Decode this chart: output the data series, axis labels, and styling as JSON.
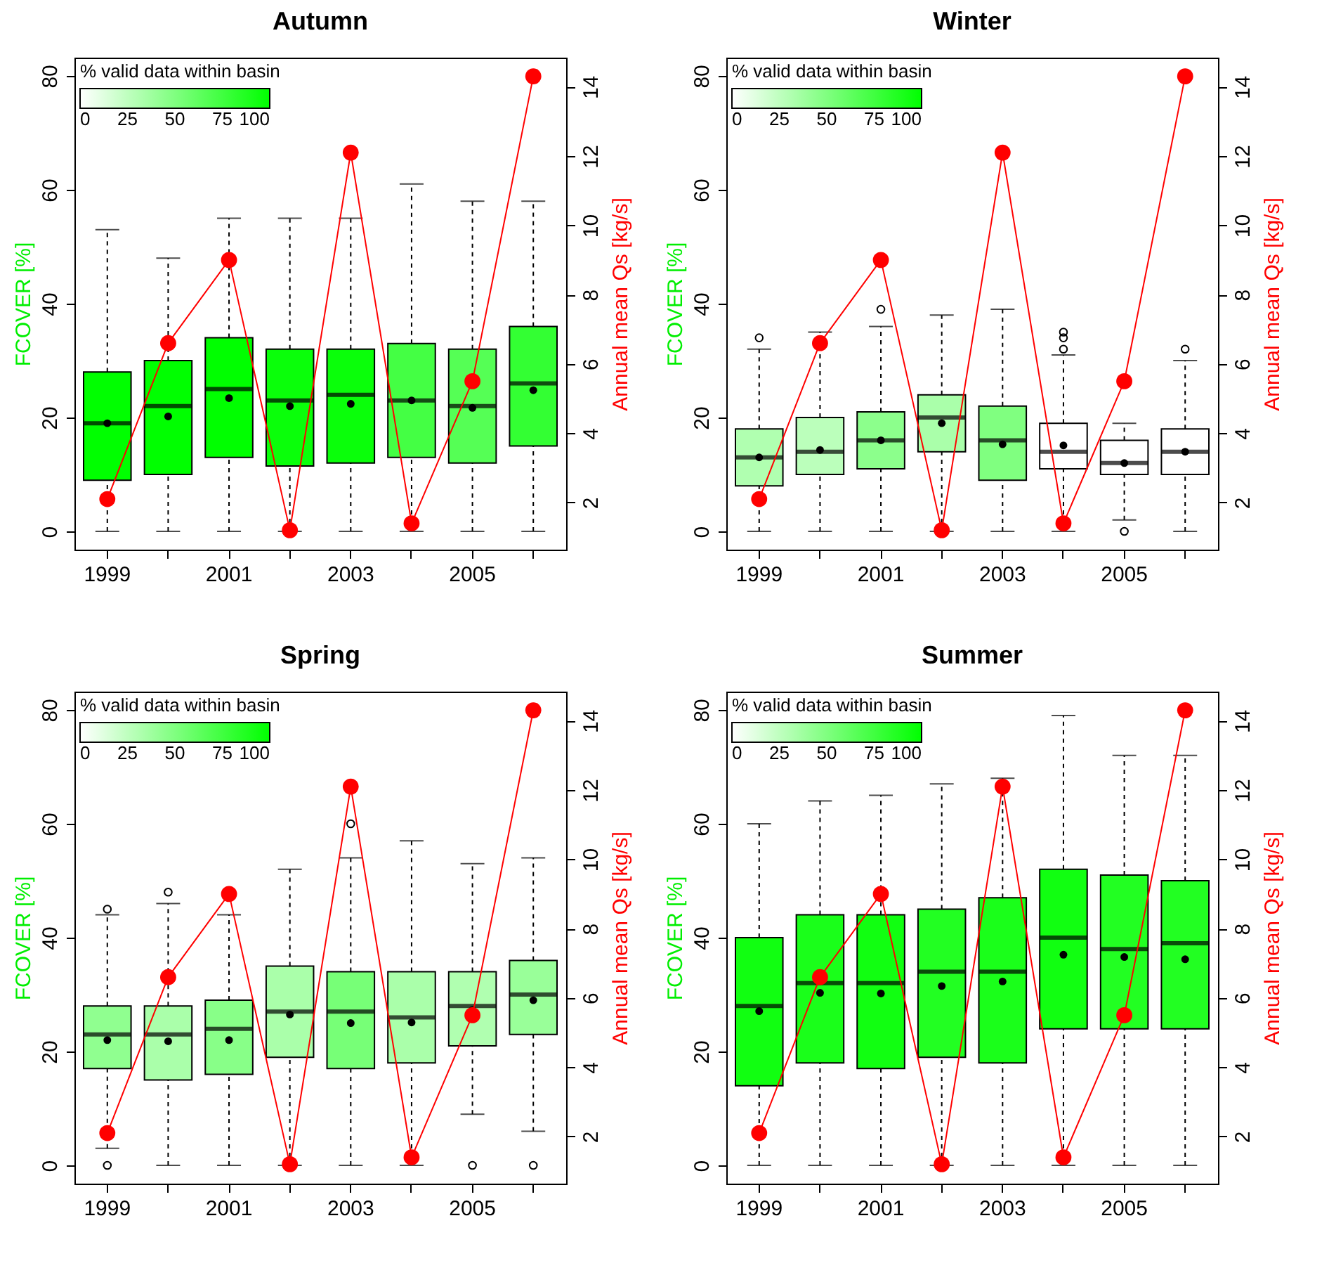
{
  "chart_data": [
    {
      "type": "box",
      "title": "Autumn",
      "categories": [
        "1999",
        null,
        "2001",
        null,
        "2003",
        null,
        "2005",
        null
      ],
      "ylabel": "FCOVER [%]",
      "y2label": "Annual mean Qs [kg/s]",
      "ylim": [
        -3.2,
        83.2
      ],
      "yticks": [
        0,
        20,
        40,
        60,
        80
      ],
      "y2lim": [
        0.64,
        14.84
      ],
      "y2ticks": [
        2,
        4,
        6,
        8,
        10,
        12,
        14
      ],
      "clabel": "% valid data within basin",
      "clim": [
        0,
        100
      ],
      "cticks": [
        0,
        25,
        50,
        75,
        100
      ],
      "marker": "circle",
      "series": [
        {
          "type": "box",
          "colors": [
            "#00ff00",
            "#00ff00",
            "#00ff00",
            "#0aff0a",
            "#0aff0a",
            "#44ff44",
            "#55ff55",
            "#33ff33"
          ],
          "boxes": [
            {
              "low": 0,
              "q1": 9,
              "median": 19,
              "q3": 28,
              "high": 53,
              "mean": 19
            },
            {
              "low": 0,
              "q1": 10,
              "median": 22,
              "q3": 30,
              "high": 48,
              "mean": 20.2
            },
            {
              "low": 0,
              "q1": 13,
              "median": 25,
              "q3": 34,
              "high": 55,
              "mean": 23.4
            },
            {
              "low": 0,
              "q1": 11.5,
              "median": 23,
              "q3": 32,
              "high": 55,
              "mean": 22
            },
            {
              "low": 0,
              "q1": 12,
              "median": 24,
              "q3": 32,
              "high": 55,
              "mean": 22.4
            },
            {
              "low": 0,
              "q1": 13,
              "median": 23,
              "q3": 33,
              "high": 61,
              "mean": 23
            },
            {
              "low": 0,
              "q1": 12,
              "median": 22,
              "q3": 32,
              "high": 58,
              "mean": 21.7
            },
            {
              "low": 0,
              "q1": 15,
              "median": 26,
              "q3": 36,
              "high": 58,
              "mean": 24.8
            }
          ]
        },
        {
          "type": "line",
          "axis": "y2",
          "color": "#ff0000",
          "values": [
            2.1,
            6.6,
            9.0,
            1.2,
            12.1,
            1.4,
            5.5,
            14.3
          ]
        }
      ]
    },
    {
      "type": "box",
      "title": "Winter",
      "categories": [
        "1999",
        null,
        "2001",
        null,
        "2003",
        null,
        "2005",
        null
      ],
      "ylabel": "FCOVER [%]",
      "y2label": "Annual mean Qs [kg/s]",
      "ylim": [
        -3.2,
        83.2
      ],
      "yticks": [
        0,
        20,
        40,
        60,
        80
      ],
      "y2lim": [
        0.64,
        14.84
      ],
      "y2ticks": [
        2,
        4,
        6,
        8,
        10,
        12,
        14
      ],
      "clabel": "% valid data within basin",
      "clim": [
        0,
        100
      ],
      "cticks": [
        0,
        25,
        50,
        75,
        100
      ],
      "marker": "circle",
      "series": [
        {
          "type": "box",
          "colors": [
            "#b0ffb0",
            "#bbffbb",
            "#8cff8c",
            "#aaffaa",
            "#80ff80",
            "#ffffff",
            "#ffffff",
            "#ffffff"
          ],
          "boxes": [
            {
              "low": 0,
              "q1": 8,
              "median": 13,
              "q3": 18,
              "high": 32,
              "mean": 13,
              "outliers": [
                34
              ]
            },
            {
              "low": 0,
              "q1": 10,
              "median": 14,
              "q3": 20,
              "high": 35,
              "mean": 14.3
            },
            {
              "low": 0,
              "q1": 11,
              "median": 16,
              "q3": 21,
              "high": 36,
              "mean": 16,
              "outliers": [
                39
              ]
            },
            {
              "low": 0,
              "q1": 14,
              "median": 20,
              "q3": 24,
              "high": 38,
              "mean": 19
            },
            {
              "low": 0,
              "q1": 9,
              "median": 16,
              "q3": 22,
              "high": 39,
              "mean": 15.3
            },
            {
              "low": 0,
              "q1": 11,
              "median": 14,
              "q3": 19,
              "high": 31,
              "mean": 15.1,
              "outliers": [
                32,
                34,
                35
              ]
            },
            {
              "low": 2,
              "q1": 10,
              "median": 12,
              "q3": 16,
              "high": 19,
              "mean": 12,
              "outliers": [
                0
              ]
            },
            {
              "low": 0,
              "q1": 10,
              "median": 14,
              "q3": 18,
              "high": 30,
              "mean": 14,
              "outliers": [
                32
              ]
            }
          ]
        },
        {
          "type": "line",
          "axis": "y2",
          "color": "#ff0000",
          "values": [
            2.1,
            6.6,
            9.0,
            1.2,
            12.1,
            1.4,
            5.5,
            14.3
          ]
        }
      ]
    },
    {
      "type": "box",
      "title": "Spring",
      "categories": [
        "1999",
        null,
        "2001",
        null,
        "2003",
        null,
        "2005",
        null
      ],
      "ylabel": "FCOVER [%]",
      "y2label": "Annual mean Qs [kg/s]",
      "ylim": [
        -3.2,
        83.2
      ],
      "yticks": [
        0,
        20,
        40,
        60,
        80
      ],
      "y2lim": [
        0.64,
        14.84
      ],
      "y2ticks": [
        2,
        4,
        6,
        8,
        10,
        12,
        14
      ],
      "clabel": "% valid data within basin",
      "clim": [
        0,
        100
      ],
      "cticks": [
        0,
        25,
        50,
        75,
        100
      ],
      "marker": "circle",
      "series": [
        {
          "type": "box",
          "colors": [
            "#90ff90",
            "#aaffaa",
            "#88ff88",
            "#aaffaa",
            "#77ff77",
            "#aaffaa",
            "#b0ffb0",
            "#99ff99"
          ],
          "boxes": [
            {
              "low": 3,
              "q1": 17,
              "median": 23,
              "q3": 28,
              "high": 44,
              "mean": 22,
              "outliers": [
                45,
                0
              ]
            },
            {
              "low": 0,
              "q1": 15,
              "median": 23,
              "q3": 28,
              "high": 46,
              "mean": 21.8,
              "outliers": [
                48
              ]
            },
            {
              "low": 0,
              "q1": 16,
              "median": 24,
              "q3": 29,
              "high": 44,
              "mean": 22
            },
            {
              "low": 0,
              "q1": 19,
              "median": 27,
              "q3": 35,
              "high": 52,
              "mean": 26.5
            },
            {
              "low": 0,
              "q1": 17,
              "median": 27,
              "q3": 34,
              "high": 54,
              "mean": 25,
              "outliers": [
                60
              ]
            },
            {
              "low": 0,
              "q1": 18,
              "median": 26,
              "q3": 34,
              "high": 57,
              "mean": 25.1
            },
            {
              "low": 9,
              "q1": 21,
              "median": 28,
              "q3": 34,
              "high": 53,
              "mean": 27.3,
              "outliers": [
                0
              ]
            },
            {
              "low": 6,
              "q1": 23,
              "median": 30,
              "q3": 36,
              "high": 54,
              "mean": 29,
              "outliers": [
                0
              ]
            }
          ]
        },
        {
          "type": "line",
          "axis": "y2",
          "color": "#ff0000",
          "values": [
            2.1,
            6.6,
            9.0,
            1.2,
            12.1,
            1.4,
            5.5,
            14.3
          ]
        }
      ]
    },
    {
      "type": "box",
      "title": "Summer",
      "categories": [
        "1999",
        null,
        "2001",
        null,
        "2003",
        null,
        "2005",
        null
      ],
      "ylabel": "FCOVER [%]",
      "y2label": "Annual mean Qs [kg/s]",
      "ylim": [
        -3.2,
        83.2
      ],
      "yticks": [
        0,
        20,
        40,
        60,
        80
      ],
      "y2lim": [
        0.64,
        14.84
      ],
      "y2ticks": [
        2,
        4,
        6,
        8,
        10,
        12,
        14
      ],
      "clabel": "% valid data within basin",
      "clim": [
        0,
        100
      ],
      "cticks": [
        0,
        25,
        50,
        75,
        100
      ],
      "marker": "circle",
      "series": [
        {
          "type": "box",
          "colors": [
            "#11ff11",
            "#1aff1a",
            "#11ff11",
            "#22ff22",
            "#1aff1a",
            "#11ff11",
            "#22ff22",
            "#22ff22"
          ],
          "boxes": [
            {
              "low": 0,
              "q1": 14,
              "median": 28,
              "q3": 40,
              "high": 60,
              "mean": 27.1
            },
            {
              "low": 0,
              "q1": 18,
              "median": 32,
              "q3": 44,
              "high": 64,
              "mean": 30.3
            },
            {
              "low": 0,
              "q1": 17,
              "median": 32,
              "q3": 44,
              "high": 65,
              "mean": 30.2
            },
            {
              "low": 0,
              "q1": 19,
              "median": 34,
              "q3": 45,
              "high": 67,
              "mean": 31.5
            },
            {
              "low": 0,
              "q1": 18,
              "median": 34,
              "q3": 47,
              "high": 68,
              "mean": 32.3
            },
            {
              "low": 0,
              "q1": 24,
              "median": 40,
              "q3": 52,
              "high": 79,
              "mean": 37
            },
            {
              "low": 0,
              "q1": 24,
              "median": 38,
              "q3": 51,
              "high": 72,
              "mean": 36.6
            },
            {
              "low": 0,
              "q1": 24,
              "median": 39,
              "q3": 50,
              "high": 72,
              "mean": 36.2
            }
          ]
        },
        {
          "type": "line",
          "axis": "y2",
          "color": "#ff0000",
          "values": [
            2.1,
            6.6,
            9.0,
            1.2,
            12.1,
            1.4,
            5.5,
            14.3
          ]
        }
      ]
    }
  ]
}
